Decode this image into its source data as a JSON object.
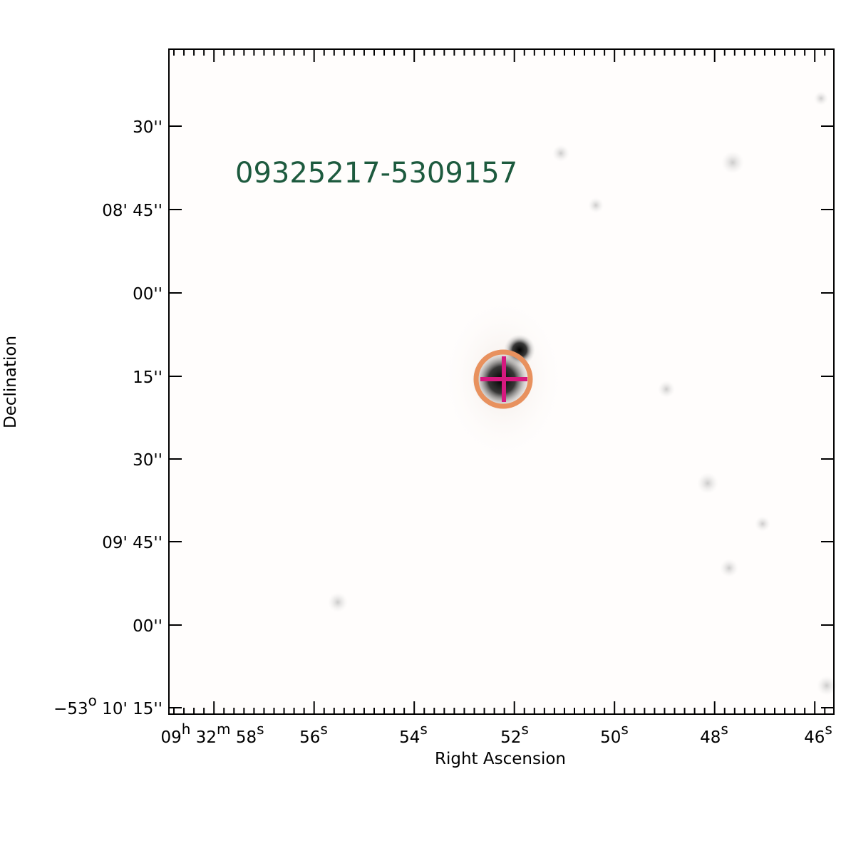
{
  "title": "09325217-5309157",
  "x_axis": {
    "label": "Right Ascension",
    "tick_labels": [
      [
        {
          "t": "09",
          "sup": "h"
        },
        {
          "t": " 32",
          "sup": "m"
        },
        {
          "t": " 58",
          "sup": "s"
        }
      ],
      [
        {
          "t": "56",
          "sup": "s"
        }
      ],
      [
        {
          "t": "54",
          "sup": "s"
        }
      ],
      [
        {
          "t": "52",
          "sup": "s"
        }
      ],
      [
        {
          "t": "50",
          "sup": "s"
        }
      ],
      [
        {
          "t": "48",
          "sup": "s"
        }
      ],
      [
        {
          "t": "46",
          "sup": "s"
        }
      ]
    ]
  },
  "y_axis": {
    "label": "Declination",
    "tick_labels": [
      [
        {
          "t": "30''"
        }
      ],
      [
        {
          "t": "08' 45''"
        }
      ],
      [
        {
          "t": "00''"
        }
      ],
      [
        {
          "t": "15''"
        }
      ],
      [
        {
          "t": "30''"
        }
      ],
      [
        {
          "t": "09' 45''"
        }
      ],
      [
        {
          "t": "00''"
        }
      ],
      [
        {
          "t": "−53",
          "sup": "o"
        },
        {
          "t": " 10' 15''"
        }
      ]
    ]
  }
}
